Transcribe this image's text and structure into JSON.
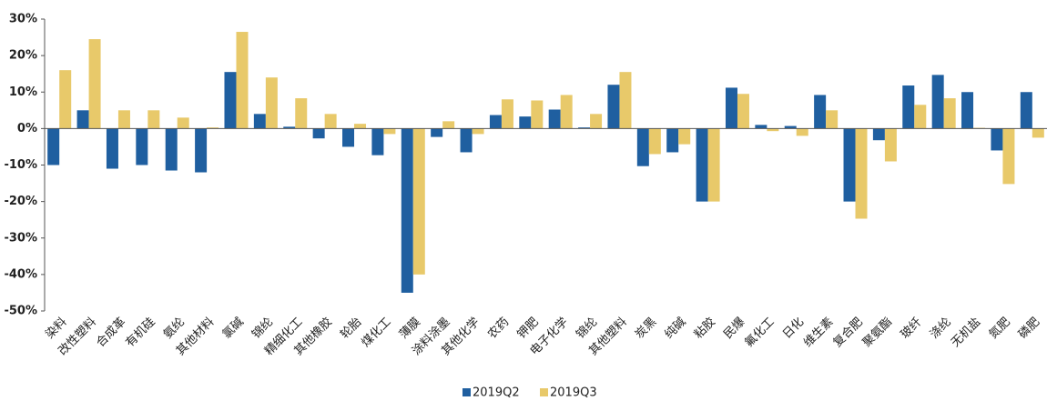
{
  "chart_data": {
    "type": "bar",
    "categories": [
      "染料",
      "改性塑料",
      "合成革",
      "有机硅",
      "氨纶",
      "其他材料",
      "氯碱",
      "锦纶",
      "精细化工",
      "其他橡胶",
      "轮胎",
      "煤化工",
      "薄膜",
      "涂料涂墨",
      "其他化学",
      "农药",
      "钾肥",
      "电子化学",
      "锦纶",
      "其他塑料",
      "炭黑",
      "纯碱",
      "粘胶",
      "民爆",
      "氟化工",
      "日化",
      "维生素",
      "复合肥",
      "聚氨酯",
      "玻纤",
      "涤纶",
      "无机盐",
      "氮肥",
      "磷肥"
    ],
    "series": [
      {
        "name": "2019Q2",
        "color": "#1f5fa0",
        "values": [
          -10,
          5,
          -11,
          -10,
          -11.5,
          -12,
          15.5,
          4,
          0.5,
          -2.7,
          -5,
          -7.3,
          -45,
          -2.3,
          -6.5,
          3.7,
          3.3,
          5.2,
          0.3,
          12,
          -10.3,
          -6.5,
          -20,
          11.2,
          1,
          0.7,
          9.2,
          -20,
          -3.2,
          11.8,
          14.7,
          10,
          -6,
          10
        ]
      },
      {
        "name": "2019Q3",
        "color": "#e8c96a",
        "values": [
          16,
          24.5,
          5,
          5,
          3,
          0.3,
          26.5,
          14,
          8.3,
          4,
          1.3,
          -1.5,
          -40,
          2,
          -1.5,
          8,
          7.7,
          9.2,
          4,
          15.5,
          -7,
          -4.3,
          -20,
          9.5,
          -0.7,
          -2,
          5,
          -24.7,
          -9,
          6.5,
          8.3,
          0.2,
          -15.2,
          -2.5
        ]
      }
    ],
    "ylim": [
      -50,
      30
    ],
    "yticks": [
      {
        "value": -50,
        "label": "-50%"
      },
      {
        "value": -40,
        "label": "-40%"
      },
      {
        "value": -30,
        "label": "-30%"
      },
      {
        "value": -20,
        "label": "-20%"
      },
      {
        "value": -10,
        "label": "-10%"
      },
      {
        "value": 0,
        "label": "0%"
      },
      {
        "value": 10,
        "label": "10%"
      },
      {
        "value": 20,
        "label": "20%"
      },
      {
        "value": 30,
        "label": "30%"
      }
    ],
    "grid": false,
    "legend": "bottom"
  }
}
